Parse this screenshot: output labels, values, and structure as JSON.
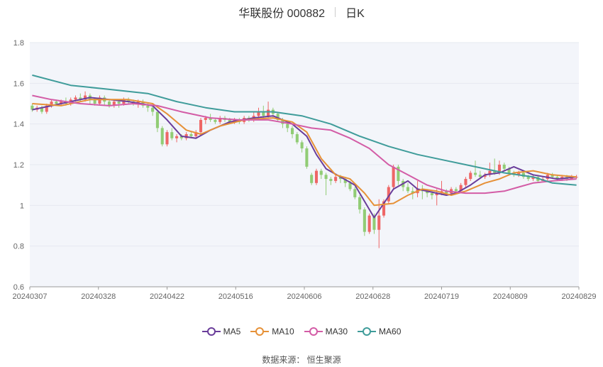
{
  "header": {
    "stock_name": "华联股份 000882",
    "period_tab": "日K"
  },
  "source_text": "数据来源：  恒生聚源",
  "colors": {
    "up": "#ee6666",
    "down": "#91cc75",
    "MA5": "#6a3d9a",
    "MA10": "#e69138",
    "MA30": "#d35ca6",
    "MA60": "#3f9c9a",
    "grid": "#e6e9f0",
    "plot_bg": "#f3f5fa"
  },
  "legend": [
    {
      "name": "MA5",
      "color": "#6a3d9a"
    },
    {
      "name": "MA10",
      "color": "#e69138"
    },
    {
      "name": "MA30",
      "color": "#d35ca6"
    },
    {
      "name": "MA60",
      "color": "#3f9c9a"
    }
  ],
  "chart_data": {
    "type": "candlestick",
    "ylim": [
      0.6,
      1.8
    ],
    "yticks": [
      "0.6",
      "0.8",
      "1",
      "1.2",
      "1.4",
      "1.6",
      "1.8"
    ],
    "xticks": [
      "20240307",
      "20240328",
      "20240422",
      "20240516",
      "20240606",
      "20240628",
      "20240719",
      "20240809",
      "20240829"
    ],
    "grid": true,
    "legend_position": "bottom",
    "candles": [
      [
        1.49,
        1.47,
        1.5,
        1.46
      ],
      [
        1.47,
        1.48,
        1.49,
        1.46
      ],
      [
        1.48,
        1.46,
        1.49,
        1.45
      ],
      [
        1.46,
        1.49,
        1.5,
        1.45
      ],
      [
        1.49,
        1.51,
        1.52,
        1.48
      ],
      [
        1.51,
        1.5,
        1.52,
        1.49
      ],
      [
        1.5,
        1.51,
        1.52,
        1.49
      ],
      [
        1.51,
        1.5,
        1.53,
        1.49
      ],
      [
        1.5,
        1.52,
        1.53,
        1.49
      ],
      [
        1.52,
        1.53,
        1.54,
        1.51
      ],
      [
        1.53,
        1.52,
        1.55,
        1.51
      ],
      [
        1.52,
        1.54,
        1.56,
        1.51
      ],
      [
        1.54,
        1.52,
        1.55,
        1.5
      ],
      [
        1.52,
        1.5,
        1.53,
        1.49
      ],
      [
        1.5,
        1.53,
        1.54,
        1.49
      ],
      [
        1.53,
        1.51,
        1.54,
        1.49
      ],
      [
        1.51,
        1.49,
        1.52,
        1.48
      ],
      [
        1.49,
        1.51,
        1.52,
        1.48
      ],
      [
        1.51,
        1.5,
        1.52,
        1.48
      ],
      [
        1.5,
        1.52,
        1.53,
        1.49
      ],
      [
        1.52,
        1.51,
        1.53,
        1.5
      ],
      [
        1.51,
        1.5,
        1.52,
        1.49
      ],
      [
        1.5,
        1.51,
        1.52,
        1.48
      ],
      [
        1.51,
        1.49,
        1.52,
        1.48
      ],
      [
        1.49,
        1.48,
        1.5,
        1.46
      ],
      [
        1.48,
        1.46,
        1.49,
        1.44
      ],
      [
        1.46,
        1.38,
        1.46,
        1.36
      ],
      [
        1.38,
        1.3,
        1.39,
        1.29
      ],
      [
        1.3,
        1.36,
        1.37,
        1.29
      ],
      [
        1.36,
        1.33,
        1.38,
        1.32
      ],
      [
        1.33,
        1.34,
        1.35,
        1.31
      ],
      [
        1.34,
        1.33,
        1.35,
        1.32
      ],
      [
        1.33,
        1.35,
        1.36,
        1.32
      ],
      [
        1.35,
        1.34,
        1.36,
        1.33
      ],
      [
        1.34,
        1.36,
        1.37,
        1.33
      ],
      [
        1.36,
        1.42,
        1.43,
        1.35
      ],
      [
        1.42,
        1.43,
        1.44,
        1.4
      ],
      [
        1.43,
        1.42,
        1.45,
        1.41
      ],
      [
        1.42,
        1.41,
        1.43,
        1.4
      ],
      [
        1.41,
        1.43,
        1.44,
        1.4
      ],
      [
        1.43,
        1.42,
        1.44,
        1.41
      ],
      [
        1.42,
        1.41,
        1.43,
        1.4
      ],
      [
        1.41,
        1.42,
        1.43,
        1.4
      ],
      [
        1.42,
        1.41,
        1.43,
        1.4
      ],
      [
        1.41,
        1.43,
        1.44,
        1.4
      ],
      [
        1.43,
        1.42,
        1.44,
        1.41
      ],
      [
        1.42,
        1.44,
        1.46,
        1.41
      ],
      [
        1.44,
        1.46,
        1.48,
        1.43
      ],
      [
        1.46,
        1.44,
        1.49,
        1.43
      ],
      [
        1.44,
        1.47,
        1.51,
        1.43
      ],
      [
        1.47,
        1.45,
        1.48,
        1.43
      ],
      [
        1.45,
        1.42,
        1.46,
        1.41
      ],
      [
        1.42,
        1.4,
        1.43,
        1.38
      ],
      [
        1.4,
        1.38,
        1.41,
        1.36
      ],
      [
        1.38,
        1.35,
        1.39,
        1.33
      ],
      [
        1.35,
        1.31,
        1.36,
        1.3
      ],
      [
        1.31,
        1.28,
        1.32,
        1.26
      ],
      [
        1.28,
        1.19,
        1.29,
        1.18
      ],
      [
        1.15,
        1.11,
        1.16,
        1.1
      ],
      [
        1.11,
        1.17,
        1.18,
        1.1
      ],
      [
        1.17,
        1.15,
        1.18,
        1.13
      ],
      [
        1.15,
        1.13,
        1.16,
        1.05
      ],
      [
        1.13,
        1.12,
        1.14,
        1.1
      ],
      [
        1.12,
        1.14,
        1.15,
        1.11
      ],
      [
        1.14,
        1.13,
        1.15,
        1.11
      ],
      [
        1.13,
        1.11,
        1.14,
        1.09
      ],
      [
        1.11,
        1.08,
        1.12,
        1.07
      ],
      [
        1.08,
        1.04,
        1.09,
        1.03
      ],
      [
        1.04,
        0.98,
        1.05,
        0.96
      ],
      [
        0.98,
        0.87,
        0.99,
        0.85
      ],
      [
        0.87,
        0.95,
        0.96,
        0.86
      ],
      [
        0.95,
        0.88,
        0.96,
        0.86
      ],
      [
        0.88,
        0.95,
        1.03,
        0.79
      ],
      [
        0.95,
        1.02,
        1.03,
        0.94
      ],
      [
        1.02,
        1.09,
        1.1,
        1.01
      ],
      [
        1.09,
        1.19,
        1.2,
        1.08
      ],
      [
        1.19,
        1.12,
        1.2,
        1.1
      ],
      [
        1.12,
        1.09,
        1.13,
        1.07
      ],
      [
        1.09,
        1.07,
        1.11,
        1.06
      ],
      [
        1.07,
        1.06,
        1.09,
        1.03
      ],
      [
        1.06,
        1.08,
        1.12,
        1.04
      ],
      [
        1.08,
        1.07,
        1.1,
        1.03
      ],
      [
        1.07,
        1.06,
        1.08,
        1.04
      ],
      [
        1.06,
        1.05,
        1.07,
        1.03
      ],
      [
        1.05,
        1.06,
        1.08,
        1.0
      ],
      [
        1.06,
        1.07,
        1.12,
        1.05
      ],
      [
        1.07,
        1.06,
        1.08,
        1.05
      ],
      [
        1.06,
        1.08,
        1.09,
        1.05
      ],
      [
        1.08,
        1.07,
        1.09,
        1.06
      ],
      [
        1.07,
        1.1,
        1.11,
        1.06
      ],
      [
        1.1,
        1.13,
        1.14,
        1.09
      ],
      [
        1.13,
        1.16,
        1.17,
        1.12
      ],
      [
        1.16,
        1.15,
        1.22,
        1.14
      ],
      [
        1.15,
        1.14,
        1.17,
        1.13
      ],
      [
        1.14,
        1.15,
        1.16,
        1.13
      ],
      [
        1.15,
        1.17,
        1.21,
        1.14
      ],
      [
        1.17,
        1.16,
        1.23,
        1.15
      ],
      [
        1.16,
        1.2,
        1.22,
        1.15
      ],
      [
        1.2,
        1.18,
        1.21,
        1.17
      ],
      [
        1.18,
        1.16,
        1.19,
        1.15
      ],
      [
        1.16,
        1.15,
        1.17,
        1.14
      ],
      [
        1.15,
        1.16,
        1.17,
        1.14
      ],
      [
        1.16,
        1.14,
        1.17,
        1.13
      ],
      [
        1.14,
        1.13,
        1.15,
        1.12
      ],
      [
        1.13,
        1.14,
        1.15,
        1.12
      ],
      [
        1.14,
        1.12,
        1.15,
        1.11
      ],
      [
        1.12,
        1.13,
        1.14,
        1.12
      ],
      [
        1.13,
        1.15,
        1.16,
        1.12
      ],
      [
        1.15,
        1.14,
        1.16,
        1.13
      ],
      [
        1.14,
        1.13,
        1.15,
        1.12
      ],
      [
        1.13,
        1.14,
        1.15,
        1.12
      ],
      [
        1.14,
        1.13,
        1.15,
        1.12
      ],
      [
        1.13,
        1.14,
        1.15,
        1.13
      ],
      [
        1.14,
        1.14,
        1.15,
        1.13
      ]
    ],
    "series": [
      {
        "name": "MA5",
        "points": [
          [
            0,
            1.47
          ],
          [
            6,
            1.5
          ],
          [
            12,
            1.53
          ],
          [
            20,
            1.51
          ],
          [
            25,
            1.49
          ],
          [
            28,
            1.42
          ],
          [
            31,
            1.34
          ],
          [
            34,
            1.33
          ],
          [
            37,
            1.37
          ],
          [
            41,
            1.41
          ],
          [
            46,
            1.43
          ],
          [
            50,
            1.44
          ],
          [
            54,
            1.4
          ],
          [
            57,
            1.34
          ],
          [
            59,
            1.25
          ],
          [
            61,
            1.18
          ],
          [
            64,
            1.14
          ],
          [
            67,
            1.1
          ],
          [
            71,
            0.94
          ],
          [
            75,
            1.08
          ],
          [
            78,
            1.12
          ],
          [
            80,
            1.08
          ],
          [
            84,
            1.06
          ],
          [
            86,
            1.05
          ],
          [
            88,
            1.06
          ],
          [
            91,
            1.1
          ],
          [
            94,
            1.15
          ],
          [
            97,
            1.16
          ],
          [
            100,
            1.19
          ],
          [
            104,
            1.15
          ],
          [
            109,
            1.13
          ],
          [
            113,
            1.14
          ]
        ]
      },
      {
        "name": "MA10",
        "points": [
          [
            0,
            1.5
          ],
          [
            6,
            1.49
          ],
          [
            12,
            1.52
          ],
          [
            20,
            1.52
          ],
          [
            25,
            1.5
          ],
          [
            28,
            1.45
          ],
          [
            32,
            1.37
          ],
          [
            35,
            1.35
          ],
          [
            39,
            1.39
          ],
          [
            44,
            1.42
          ],
          [
            50,
            1.43
          ],
          [
            54,
            1.41
          ],
          [
            57,
            1.36
          ],
          [
            60,
            1.23
          ],
          [
            63,
            1.15
          ],
          [
            66,
            1.13
          ],
          [
            69,
            1.06
          ],
          [
            71,
            1.0
          ],
          [
            75,
            1.01
          ],
          [
            78,
            1.05
          ],
          [
            81,
            1.08
          ],
          [
            84,
            1.07
          ],
          [
            87,
            1.05
          ],
          [
            90,
            1.07
          ],
          [
            94,
            1.11
          ],
          [
            97,
            1.13
          ],
          [
            100,
            1.16
          ],
          [
            104,
            1.17
          ],
          [
            108,
            1.15
          ],
          [
            113,
            1.14
          ]
        ]
      },
      {
        "name": "MA30",
        "points": [
          [
            0,
            1.54
          ],
          [
            4,
            1.52
          ],
          [
            10,
            1.5
          ],
          [
            16,
            1.49
          ],
          [
            21,
            1.5
          ],
          [
            26,
            1.49
          ],
          [
            31,
            1.46
          ],
          [
            37,
            1.43
          ],
          [
            43,
            1.42
          ],
          [
            49,
            1.42
          ],
          [
            54,
            1.4
          ],
          [
            58,
            1.38
          ],
          [
            62,
            1.37
          ],
          [
            66,
            1.33
          ],
          [
            70,
            1.28
          ],
          [
            74,
            1.2
          ],
          [
            78,
            1.15
          ],
          [
            82,
            1.1
          ],
          [
            86,
            1.07
          ],
          [
            90,
            1.06
          ],
          [
            94,
            1.06
          ],
          [
            98,
            1.07
          ],
          [
            101,
            1.09
          ],
          [
            104,
            1.11
          ],
          [
            108,
            1.12
          ],
          [
            113,
            1.13
          ]
        ]
      },
      {
        "name": "MA60",
        "points": [
          [
            0,
            1.64
          ],
          [
            8,
            1.59
          ],
          [
            16,
            1.57
          ],
          [
            24,
            1.55
          ],
          [
            30,
            1.51
          ],
          [
            36,
            1.48
          ],
          [
            42,
            1.46
          ],
          [
            50,
            1.46
          ],
          [
            56,
            1.44
          ],
          [
            62,
            1.4
          ],
          [
            68,
            1.34
          ],
          [
            74,
            1.29
          ],
          [
            80,
            1.25
          ],
          [
            86,
            1.22
          ],
          [
            92,
            1.19
          ],
          [
            98,
            1.16
          ],
          [
            104,
            1.14
          ],
          [
            108,
            1.11
          ],
          [
            113,
            1.1
          ]
        ]
      }
    ]
  }
}
